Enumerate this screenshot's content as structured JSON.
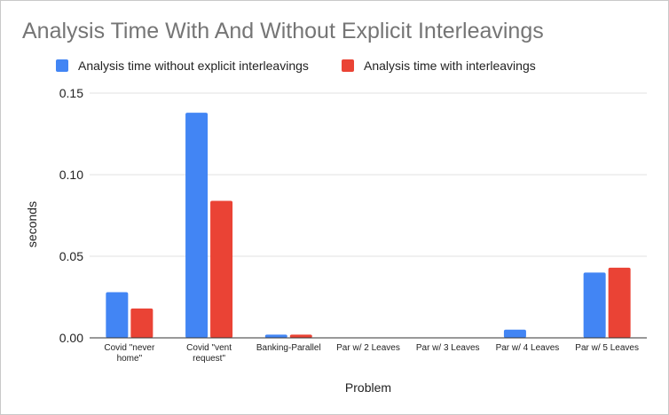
{
  "chart_data": {
    "type": "bar",
    "title": "Analysis Time With And Without Explicit Interleavings",
    "xlabel": "Problem",
    "ylabel": "seconds",
    "ylim": [
      0,
      0.15
    ],
    "yticks": [
      "0.00",
      "0.05",
      "0.10",
      "0.15"
    ],
    "grid": true,
    "legend_position": "top-left",
    "categories": [
      [
        "Covid \"never",
        "home\""
      ],
      [
        "Covid \"vent",
        "request\""
      ],
      [
        "Banking-Parallel"
      ],
      [
        "Par w/ 2 Leaves"
      ],
      [
        "Par w/ 3 Leaves"
      ],
      [
        "Par w/ 4 Leaves"
      ],
      [
        "Par w/ 5 Leaves"
      ]
    ],
    "series": [
      {
        "name": "Analysis time without explicit interleavings",
        "color": "#4285f4",
        "values": [
          0.028,
          0.138,
          0.002,
          0.0,
          0.0,
          0.005,
          0.04
        ]
      },
      {
        "name": "Analysis time with interleavings",
        "color": "#ea4335",
        "values": [
          0.018,
          0.084,
          0.002,
          0.0,
          0.0,
          0.0,
          0.043
        ]
      }
    ]
  }
}
